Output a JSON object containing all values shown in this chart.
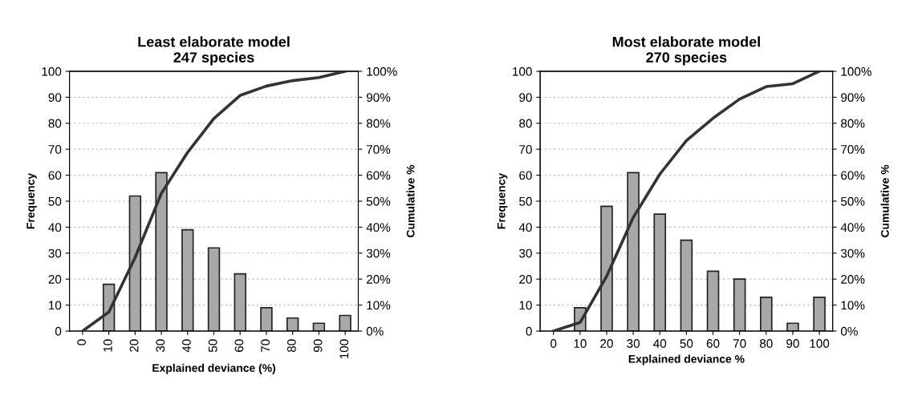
{
  "chart_data": [
    {
      "type": "bar",
      "title": "Least elaborate model\n247 species",
      "xlabel": "Explained deviance (%)",
      "ylabel": "Frequency",
      "y2label": "Cumulative %",
      "categories": [
        "0",
        "10",
        "20",
        "30",
        "40",
        "50",
        "60",
        "70",
        "80",
        "90",
        "100"
      ],
      "series": [
        {
          "color": "#a8a8a8",
          "values": [
            0,
            18,
            52,
            61,
            39,
            32,
            22,
            9,
            5,
            3,
            6
          ]
        },
        {
          "type": "line",
          "axis": "y2",
          "color": "#333333",
          "values": [
            0,
            7.3,
            28.3,
            53,
            68.8,
            81.8,
            90.7,
            94.3,
            96.4,
            97.6,
            100
          ]
        }
      ],
      "ylim": [
        0,
        100
      ],
      "yticks": [
        0,
        10,
        20,
        30,
        40,
        50,
        60,
        70,
        80,
        90,
        100
      ],
      "y2lim": [
        0,
        100
      ],
      "y2ticks": [
        {
          "value": 0,
          "label": "0%"
        },
        {
          "value": 10,
          "label": "10%"
        },
        {
          "value": 20,
          "label": "20%"
        },
        {
          "value": 30,
          "label": "30%"
        },
        {
          "value": 40,
          "label": "40%"
        },
        {
          "value": 50,
          "label": "50%"
        },
        {
          "value": 60,
          "label": "60%"
        },
        {
          "value": 70,
          "label": "70%"
        },
        {
          "value": 80,
          "label": "80%"
        },
        {
          "value": 90,
          "label": "90%"
        },
        {
          "value": 100,
          "label": "100%"
        }
      ],
      "grid": "y",
      "marker": "none",
      "line_style": "solid"
    },
    {
      "type": "bar",
      "title": "Most elaborate model\n270 species",
      "xlabel": "Explained deviance %",
      "ylabel": "Frequency",
      "y2label": "Cumulative %",
      "categories": [
        "0",
        "10",
        "20",
        "30",
        "40",
        "50",
        "60",
        "70",
        "80",
        "90",
        "100"
      ],
      "series": [
        {
          "color": "#a8a8a8",
          "values": [
            0,
            9,
            48,
            61,
            45,
            35,
            23,
            20,
            13,
            3,
            13
          ]
        },
        {
          "type": "line",
          "axis": "y2",
          "color": "#333333",
          "values": [
            0,
            3.3,
            21.1,
            43.7,
            60.4,
            73.3,
            81.9,
            89.3,
            94.1,
            95.2,
            100
          ]
        }
      ],
      "ylim": [
        0,
        100
      ],
      "yticks": [
        0,
        10,
        20,
        30,
        40,
        50,
        60,
        70,
        80,
        90,
        100
      ],
      "y2lim": [
        0,
        100
      ],
      "y2ticks": [
        {
          "value": 0,
          "label": "0%"
        },
        {
          "value": 10,
          "label": "10%"
        },
        {
          "value": 20,
          "label": "20%"
        },
        {
          "value": 30,
          "label": "30%"
        },
        {
          "value": 40,
          "label": "40%"
        },
        {
          "value": 50,
          "label": "50%"
        },
        {
          "value": 60,
          "label": "60%"
        },
        {
          "value": 70,
          "label": "70%"
        },
        {
          "value": 80,
          "label": "80%"
        },
        {
          "value": 90,
          "label": "90%"
        },
        {
          "value": 100,
          "label": "100%"
        }
      ],
      "grid": "y",
      "marker": "none",
      "line_style": "solid"
    }
  ]
}
